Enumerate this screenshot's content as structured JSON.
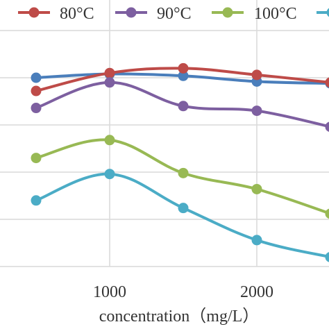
{
  "chart_data": {
    "type": "line",
    "title": "",
    "xlabel": "concentration（mg/L）",
    "ylabel": "",
    "x_ticks": [
      "1000",
      "2000"
    ],
    "grid": "vertical and horizontal",
    "legend_position": "top",
    "series": [
      {
        "name": "",
        "color": "#4a7ebb",
        "x": [
          500,
          1000,
          1500,
          2000,
          2500
        ],
        "y": [
          100,
          102,
          101,
          98,
          97
        ]
      },
      {
        "name": "80°C",
        "color": "#be4b48",
        "x": [
          500,
          1000,
          1500,
          2000,
          2500
        ],
        "y": [
          93,
          102.5,
          105,
          101.5,
          97.5
        ]
      },
      {
        "name": "90°C",
        "color": "#7d5fa0",
        "x": [
          500,
          1000,
          1500,
          2000,
          2500
        ],
        "y": [
          84,
          97.5,
          85,
          82.5,
          74
        ]
      },
      {
        "name": "100°C",
        "color": "#98b954",
        "x": [
          500,
          1000,
          1500,
          2000,
          2500
        ],
        "y": [
          57.5,
          67,
          49.5,
          41,
          28
        ]
      },
      {
        "name": "",
        "color": "#4bacc6",
        "x": [
          500,
          1000,
          1500,
          2000,
          2500
        ],
        "y": [
          35,
          49,
          31,
          14,
          5
        ]
      }
    ]
  }
}
